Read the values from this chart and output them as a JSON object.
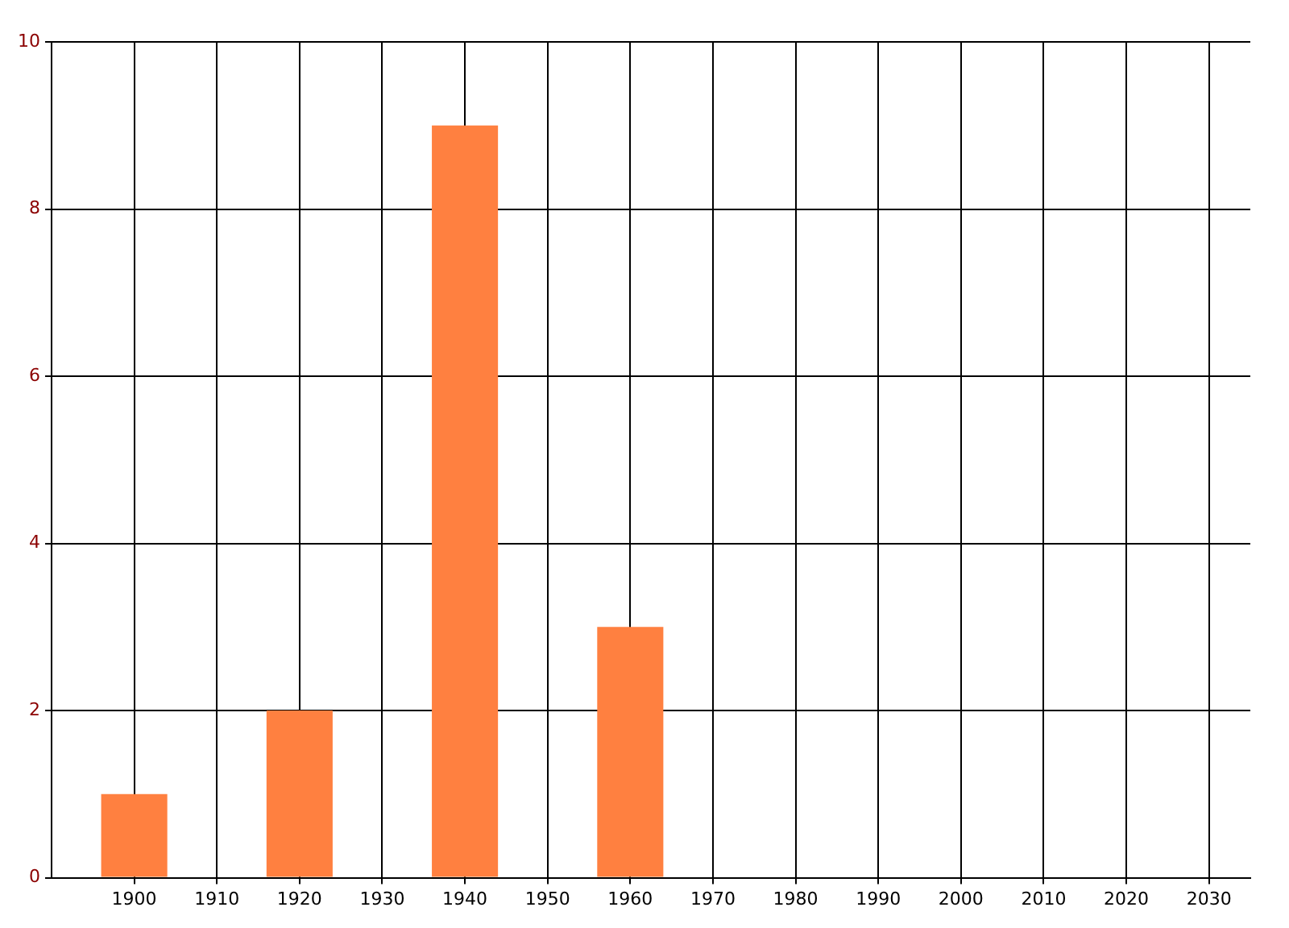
{
  "chart_data": {
    "type": "bar",
    "x": [
      1900,
      1920,
      1940,
      1960
    ],
    "values": [
      1,
      2,
      9,
      3
    ],
    "color": "#ff8040",
    "xlim": [
      1890,
      2035
    ],
    "xticks": [
      1900,
      1910,
      1920,
      1930,
      1940,
      1950,
      1960,
      1970,
      1980,
      1990,
      2000,
      2010,
      2020,
      2030
    ],
    "ylim": [
      0,
      10
    ],
    "yticks": [
      0,
      2,
      4,
      6,
      8,
      10
    ],
    "grid": true,
    "legend": false
  }
}
